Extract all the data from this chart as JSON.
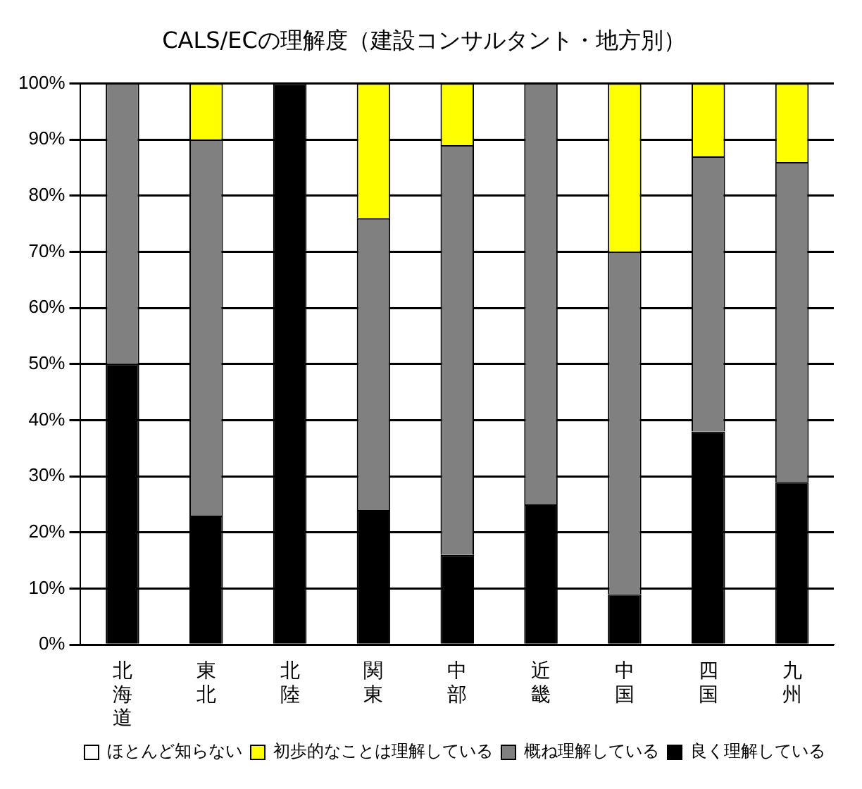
{
  "chart_data": {
    "type": "bar",
    "title": "CALS/ECの理解度（建設コンサルタント・地方別）",
    "categories": [
      "北海道",
      "東北",
      "北陸",
      "関東",
      "中部",
      "近畿",
      "中国",
      "四国",
      "九州"
    ],
    "stacked": true,
    "series": [
      {
        "name": "良く理解している",
        "color": "#000000",
        "values": [
          50,
          23,
          100,
          24,
          16,
          25,
          9,
          38,
          29
        ]
      },
      {
        "name": "概ね理解している",
        "color": "#808080",
        "values": [
          50,
          67,
          0,
          52,
          73,
          75,
          61,
          49,
          57
        ]
      },
      {
        "name": "初歩的なことは理解している",
        "color": "#ffff00",
        "values": [
          0,
          10,
          0,
          24,
          11,
          0,
          30,
          13,
          14
        ]
      },
      {
        "name": "ほとんど知らない",
        "color": "#ffffff",
        "values": [
          0,
          0,
          0,
          0,
          0,
          0,
          0,
          0,
          0
        ]
      }
    ],
    "ylim": [
      0,
      100
    ],
    "yticks": [
      {
        "value": 0,
        "label": "0%"
      },
      {
        "value": 10,
        "label": "10%"
      },
      {
        "value": 20,
        "label": "20%"
      },
      {
        "value": 30,
        "label": "30%"
      },
      {
        "value": 40,
        "label": "40%"
      },
      {
        "value": 50,
        "label": "50%"
      },
      {
        "value": 60,
        "label": "60%"
      },
      {
        "value": 70,
        "label": "70%"
      },
      {
        "value": 80,
        "label": "80%"
      },
      {
        "value": 90,
        "label": "90%"
      },
      {
        "value": 100,
        "label": "100%"
      }
    ],
    "grid": "y",
    "legend": "bottom right"
  }
}
